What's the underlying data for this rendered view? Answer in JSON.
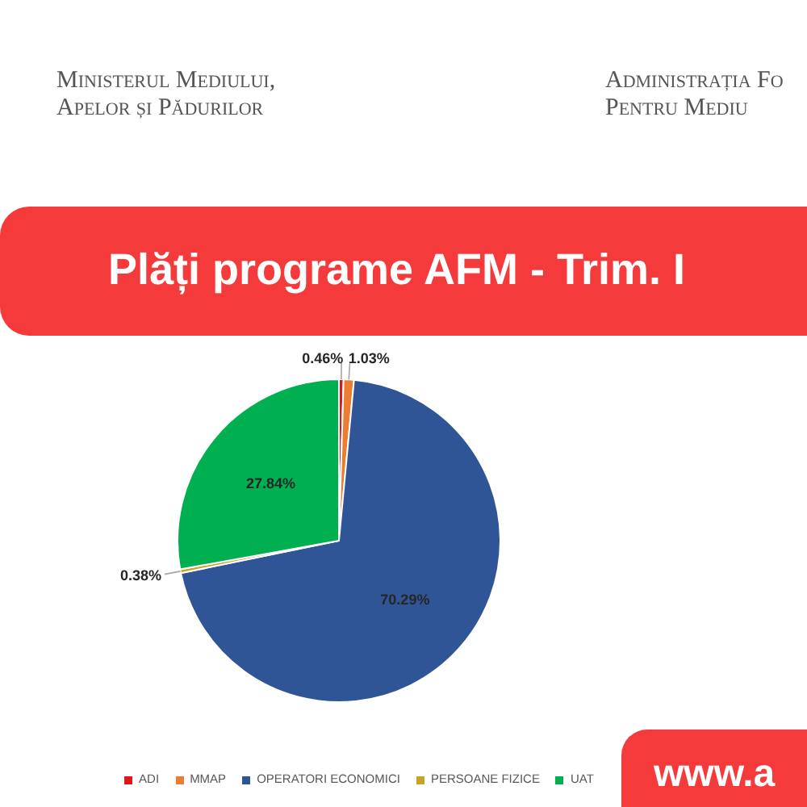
{
  "chart_data": {
    "type": "pie",
    "title": "Plăți programe AFM - Trim. I",
    "categories": [
      "ADI",
      "MMAP",
      "OPERATORI ECONOMICI",
      "PERSOANE FIZICE",
      "UAT"
    ],
    "values": [
      0.46,
      1.03,
      70.29,
      0.38,
      27.84
    ],
    "colors": [
      "#e0161e",
      "#ed7d31",
      "#2f5597",
      "#c9a227",
      "#00b050"
    ],
    "value_labels": [
      "0.46%",
      "1.03%",
      "70.29%",
      "0.38%",
      "27.84%"
    ],
    "legend": "bottom",
    "annotations": [
      "Ministerul Mediului,\nApelor și Pădurilor",
      "Administrația Fo\nPentru Mediu",
      "www.a"
    ]
  }
}
